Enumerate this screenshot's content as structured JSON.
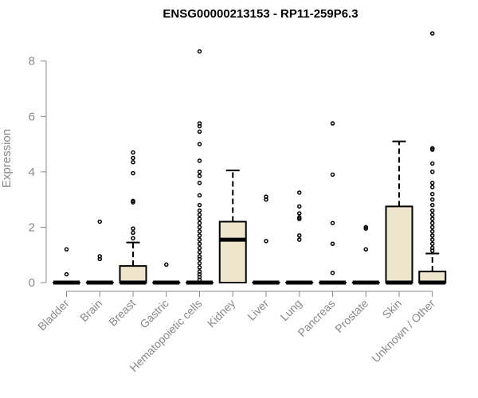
{
  "chart_data": {
    "type": "box",
    "title": "ENSG00000213153 - RP11-259P6.3",
    "ylabel": "Expression",
    "ylim": [
      0,
      9.2
    ],
    "yticks": [
      "0",
      "2",
      "4",
      "6",
      "8"
    ],
    "ytick_values": [
      0,
      2,
      4,
      6,
      8
    ],
    "box_fill": "#ede6cc",
    "categories": [
      "Bladder",
      "Brain",
      "Breast",
      "Gastric",
      "Hematopoietic cells",
      "Kidney",
      "Liver",
      "Lung",
      "Pancreas",
      "Prostate",
      "Skin",
      "Unknown / Other"
    ],
    "boxes": [
      {
        "q1": 0,
        "median": 0,
        "q3": 0,
        "whisker_low": 0,
        "whisker_high": 0,
        "outliers": [
          1.2,
          0.3
        ]
      },
      {
        "q1": 0,
        "median": 0,
        "q3": 0,
        "whisker_low": 0,
        "whisker_high": 0,
        "outliers": [
          2.2,
          0.95,
          0.85
        ]
      },
      {
        "q1": 0,
        "median": 0,
        "q3": 0.6,
        "whisker_low": 0,
        "whisker_high": 1.45,
        "outliers": [
          4.7,
          4.5,
          4.35,
          3.95,
          2.95,
          2.9,
          1.95,
          1.8,
          1.6
        ]
      },
      {
        "q1": 0,
        "median": 0,
        "q3": 0,
        "whisker_low": 0,
        "whisker_high": 0,
        "outliers": [
          0.65
        ]
      },
      {
        "q1": 0,
        "median": 0,
        "q3": 0,
        "whisker_low": 0,
        "whisker_high": 0,
        "outliers": [
          8.35,
          5.75,
          5.65,
          5.45,
          5.0,
          4.4,
          4.0,
          3.85,
          3.6,
          3.15,
          2.8,
          2.6,
          2.45,
          2.3,
          2.15,
          2.0,
          1.85,
          1.7,
          1.55,
          1.4,
          1.25,
          1.1,
          0.95,
          0.85,
          0.7,
          0.55,
          0.4,
          0.3,
          0.2,
          0.1
        ]
      },
      {
        "q1": 0,
        "median": 1.55,
        "q3": 2.2,
        "whisker_low": 0,
        "whisker_high": 4.05,
        "outliers": []
      },
      {
        "q1": 0,
        "median": 0,
        "q3": 0,
        "whisker_low": 0,
        "whisker_high": 0,
        "outliers": [
          3.1,
          3.0,
          1.5
        ]
      },
      {
        "q1": 0,
        "median": 0,
        "q3": 0,
        "whisker_low": 0,
        "whisker_high": 0,
        "outliers": [
          3.25,
          2.75,
          2.5,
          2.35,
          2.3,
          1.7,
          1.55
        ]
      },
      {
        "q1": 0,
        "median": 0,
        "q3": 0,
        "whisker_low": 0,
        "whisker_high": 0,
        "outliers": [
          5.75,
          3.9,
          2.15,
          1.4,
          0.35
        ]
      },
      {
        "q1": 0,
        "median": 0,
        "q3": 0,
        "whisker_low": 0,
        "whisker_high": 0,
        "outliers": [
          2.0,
          1.95,
          1.2
        ]
      },
      {
        "q1": 0,
        "median": 0,
        "q3": 2.75,
        "whisker_low": 0,
        "whisker_high": 5.1,
        "outliers": []
      },
      {
        "q1": 0,
        "median": 0,
        "q3": 0.4,
        "whisker_low": 0,
        "whisker_high": 1.05,
        "outliers": [
          9.0,
          4.85,
          4.8,
          4.3,
          4.0,
          3.6,
          3.45,
          3.2,
          3.0,
          2.8,
          2.6,
          2.45,
          2.3,
          2.15,
          2.0,
          1.85,
          1.7,
          1.55,
          1.4,
          1.25,
          1.15
        ]
      }
    ]
  }
}
